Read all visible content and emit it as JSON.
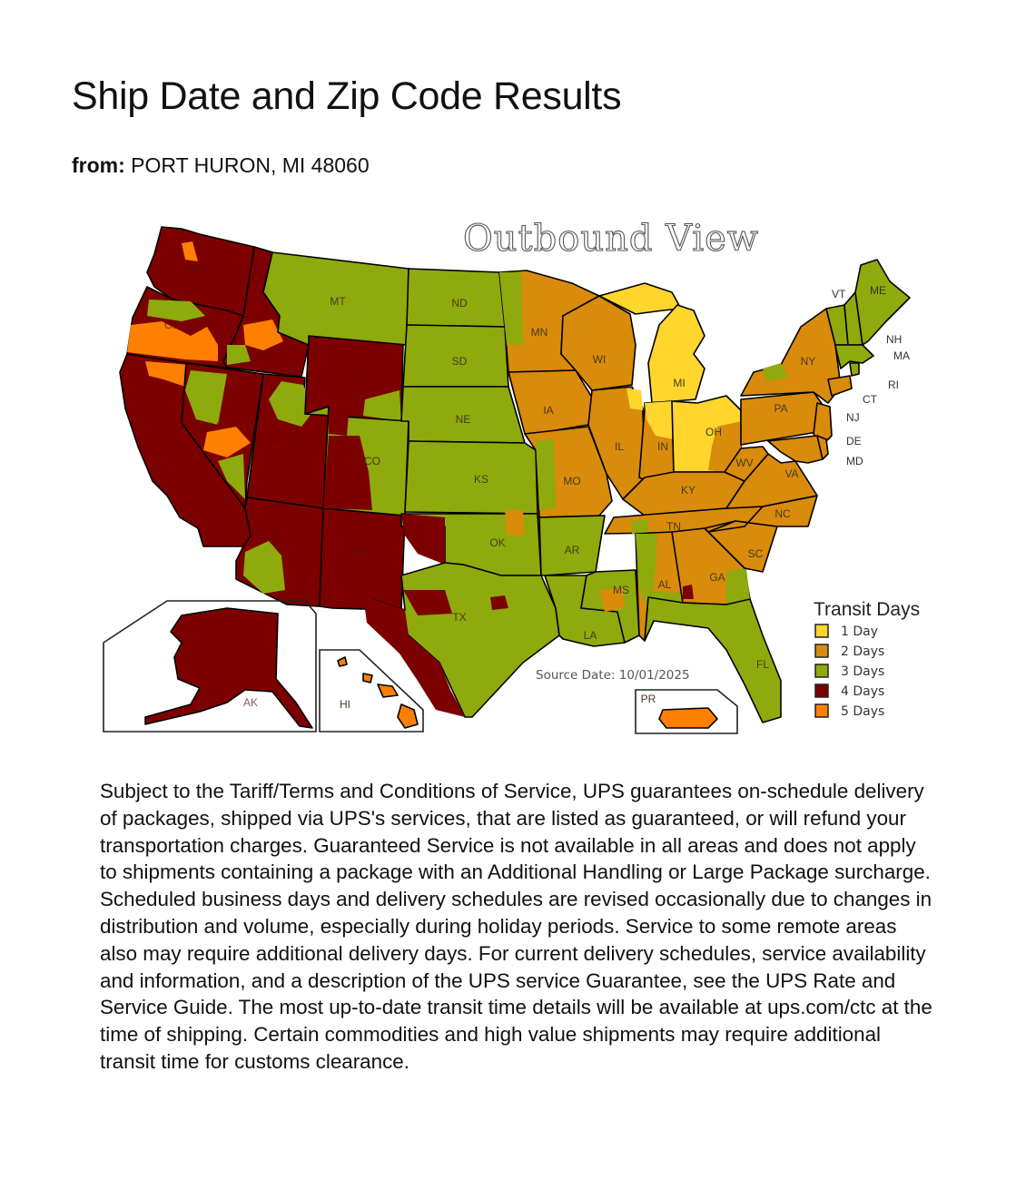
{
  "page": {
    "title": "Ship Date and Zip Code Results",
    "origin_label": "from:",
    "origin_value": "PORT HURON, MI 48060"
  },
  "map": {
    "title": "Outbound View",
    "source_date": "Source Date: 10/01/2025",
    "legend": {
      "title": "Transit Days",
      "items": [
        {
          "label": "1 Day",
          "days": 1,
          "color": "#FFD52E"
        },
        {
          "label": "2 Days",
          "days": 2,
          "color": "#D98B0B"
        },
        {
          "label": "3 Days",
          "days": 3,
          "color": "#8FAA0C"
        },
        {
          "label": "4 Days",
          "days": 4,
          "color": "#7C0000"
        },
        {
          "label": "5 Days",
          "days": 5,
          "color": "#FF8000"
        }
      ]
    },
    "states": {
      "WA": {
        "label": "WA",
        "days": 4
      },
      "OR": {
        "label": "OR",
        "days": 4
      },
      "CA": {
        "label": "CA",
        "days": 4
      },
      "ID": {
        "label": "ID",
        "days": 4
      },
      "NV": {
        "label": "NV",
        "days": 4
      },
      "MT": {
        "label": "MT",
        "days": 3
      },
      "WY": {
        "label": "WY",
        "days": 4
      },
      "UT": {
        "label": "UT",
        "days": 4
      },
      "CO": {
        "label": "CO",
        "days": 3
      },
      "AZ": {
        "label": "AZ",
        "days": 4
      },
      "NM": {
        "label": "NM",
        "days": 4
      },
      "ND": {
        "label": "ND",
        "days": 3
      },
      "SD": {
        "label": "SD",
        "days": 3
      },
      "NE": {
        "label": "NE",
        "days": 3
      },
      "KS": {
        "label": "KS",
        "days": 3
      },
      "OK": {
        "label": "OK",
        "days": 3
      },
      "TX": {
        "label": "TX",
        "days": 3
      },
      "MN": {
        "label": "MN",
        "days": 2
      },
      "IA": {
        "label": "IA",
        "days": 2
      },
      "MO": {
        "label": "MO",
        "days": 2
      },
      "AR": {
        "label": "AR",
        "days": 3
      },
      "LA": {
        "label": "LA",
        "days": 3
      },
      "WI": {
        "label": "WI",
        "days": 2
      },
      "IL": {
        "label": "IL",
        "days": 2
      },
      "MS": {
        "label": "MS",
        "days": 3
      },
      "MI": {
        "label": "MI",
        "days": 1
      },
      "IN": {
        "label": "IN",
        "days": 2
      },
      "OH": {
        "label": "OH",
        "days": 1
      },
      "KY": {
        "label": "KY",
        "days": 2
      },
      "TN": {
        "label": "TN",
        "days": 2
      },
      "AL": {
        "label": "AL",
        "days": 2
      },
      "GA": {
        "label": "GA",
        "days": 2
      },
      "FL": {
        "label": "FL",
        "days": 3
      },
      "SC": {
        "label": "SC",
        "days": 2
      },
      "NC": {
        "label": "NC",
        "days": 2
      },
      "VA": {
        "label": "VA",
        "days": 2
      },
      "WV": {
        "label": "WV",
        "days": 2
      },
      "PA": {
        "label": "PA",
        "days": 2
      },
      "NY": {
        "label": "NY",
        "days": 2
      },
      "VT": {
        "label": "VT",
        "days": 3
      },
      "NH": {
        "label": "NH",
        "days": 3
      },
      "ME": {
        "label": "ME",
        "days": 3
      },
      "MA": {
        "label": "MA",
        "days": 3
      },
      "RI": {
        "label": "RI",
        "days": 3
      },
      "CT": {
        "label": "CT",
        "days": 2
      },
      "NJ": {
        "label": "NJ",
        "days": 2
      },
      "DE": {
        "label": "DE",
        "days": 2
      },
      "MD": {
        "label": "MD",
        "days": 2
      },
      "AK": {
        "label": "AK",
        "days": 4
      },
      "HI": {
        "label": "HI",
        "days": 5
      },
      "PR": {
        "label": "PR",
        "days": 5
      }
    }
  },
  "disclaimer": "Subject to the Tariff/Terms and Conditions of Service, UPS guarantees on-schedule delivery of packages, shipped via UPS's services, that are listed as guaranteed, or will refund your transportation charges. Guaranteed Service is not available in all areas and does not apply to shipments containing a package with an Additional Handling or Large Package surcharge. Scheduled business days and delivery schedules are revised occasionally due to changes in distribution and volume, especially during holiday periods. Service to some remote areas also may require additional delivery days. For current delivery schedules, service availability and information, and a description of the UPS service Guarantee, see the UPS Rate and Service Guide. The most up-to-date transit time details will be available at ups.com/ctc at the time of shipping. Certain commodities and high value shipments may require additional transit time for customs clearance.",
  "chart_data": {
    "type": "choropleth",
    "title": "Outbound View",
    "origin": "PORT HURON, MI 48060",
    "legend_title": "Transit Days",
    "categories": [
      "1 Day",
      "2 Days",
      "3 Days",
      "4 Days",
      "5 Days"
    ],
    "regions_by_days": {
      "1": [
        "MI",
        "OH"
      ],
      "2": [
        "MN",
        "IA",
        "MO",
        "WI",
        "IL",
        "IN",
        "KY",
        "TN",
        "AL",
        "GA",
        "SC",
        "NC",
        "VA",
        "WV",
        "PA",
        "NY",
        "NJ",
        "DE",
        "MD",
        "CT"
      ],
      "3": [
        "MT",
        "ND",
        "SD",
        "NE",
        "KS",
        "OK",
        "TX",
        "CO",
        "AR",
        "LA",
        "MS",
        "FL",
        "VT",
        "NH",
        "ME",
        "MA",
        "RI"
      ],
      "4": [
        "WA",
        "OR",
        "CA",
        "ID",
        "NV",
        "WY",
        "UT",
        "AZ",
        "NM",
        "AK"
      ],
      "5": [
        "HI",
        "PR"
      ]
    },
    "source_date": "10/01/2025"
  }
}
